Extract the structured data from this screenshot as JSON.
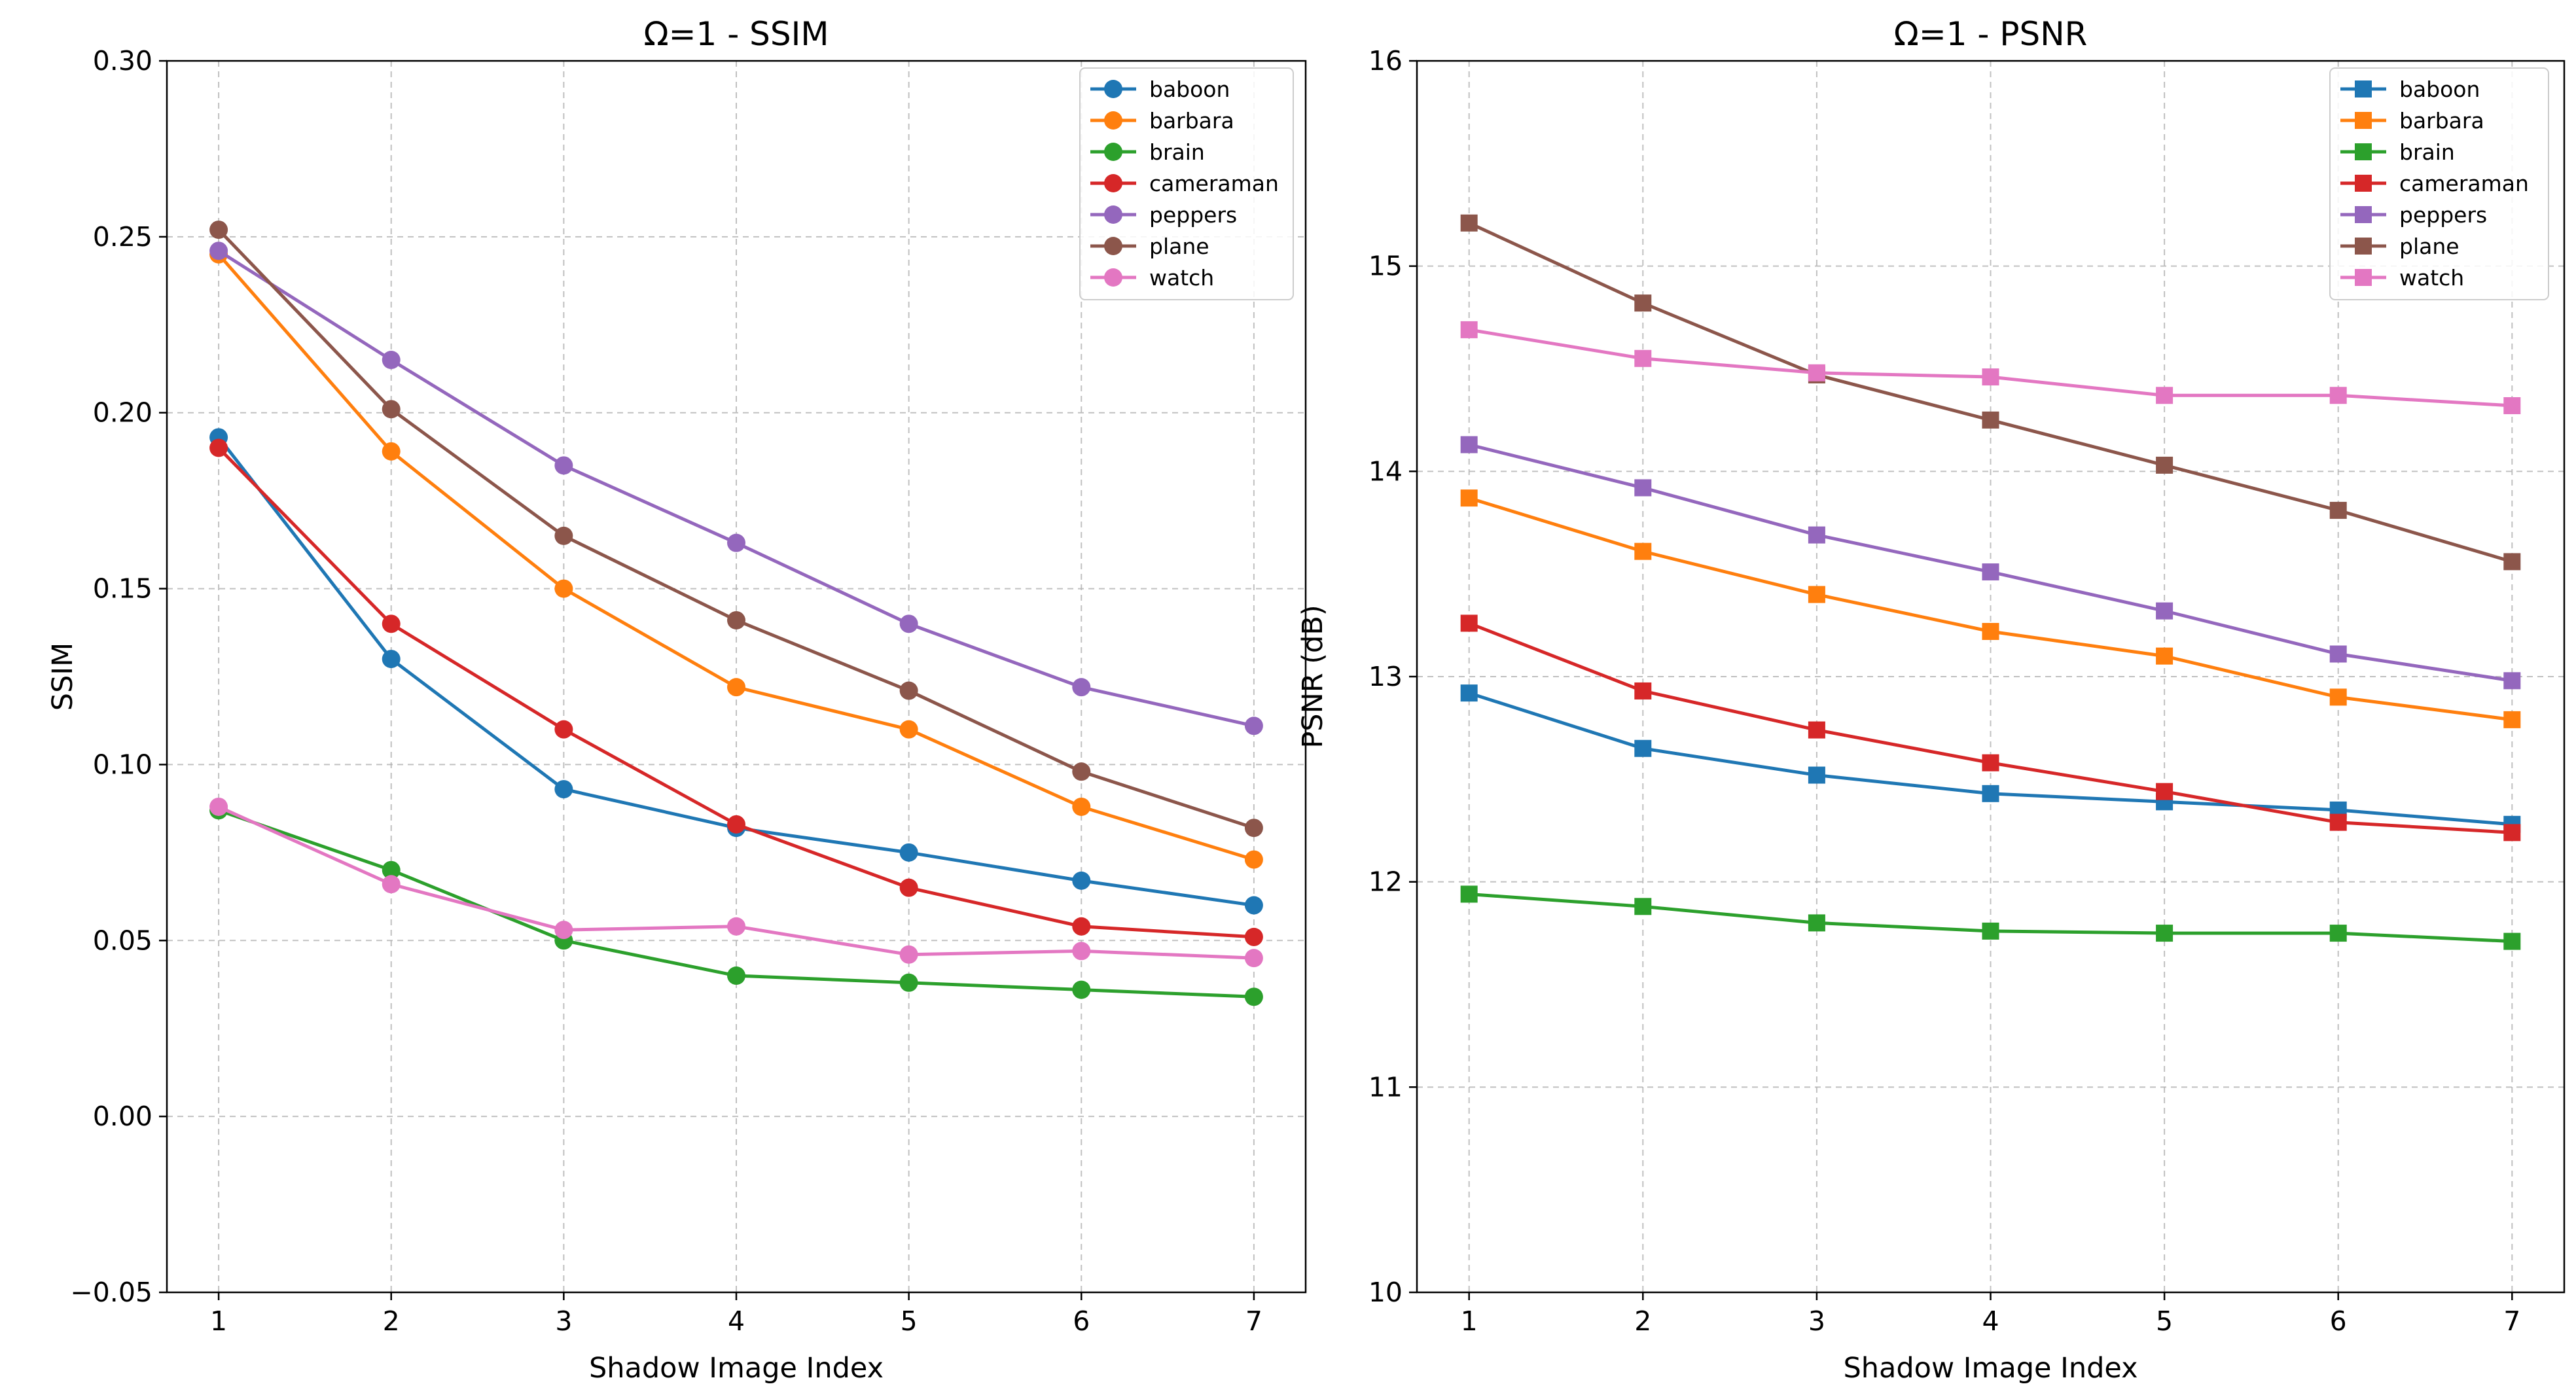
{
  "chart_data": [
    {
      "type": "line",
      "title": "Ω=1 - SSIM",
      "xlabel": "Shadow Image Index",
      "ylabel": "SSIM",
      "x": [
        1,
        2,
        3,
        4,
        5,
        6,
        7
      ],
      "xlim": [
        0.7,
        7.3
      ],
      "ylim": [
        -0.05,
        0.3
      ],
      "yticks": [
        -0.05,
        0.0,
        0.05,
        0.1,
        0.15,
        0.2,
        0.25,
        0.3
      ],
      "ytick_labels": [
        "−0.05",
        "0.00",
        "0.05",
        "0.10",
        "0.15",
        "0.20",
        "0.25",
        "0.30"
      ],
      "xticks": [
        1,
        2,
        3,
        4,
        5,
        6,
        7
      ],
      "xtick_labels": [
        "1",
        "2",
        "3",
        "4",
        "5",
        "6",
        "7"
      ],
      "marker": "circle",
      "grid": true,
      "legend_position": "top-right",
      "series": [
        {
          "name": "baboon",
          "color": "#1f77b4",
          "values": [
            0.193,
            0.13,
            0.093,
            0.082,
            0.075,
            0.067,
            0.06
          ]
        },
        {
          "name": "barbara",
          "color": "#ff7f0e",
          "values": [
            0.245,
            0.189,
            0.15,
            0.122,
            0.11,
            0.088,
            0.073
          ]
        },
        {
          "name": "brain",
          "color": "#2ca02c",
          "values": [
            0.087,
            0.07,
            0.05,
            0.04,
            0.038,
            0.036,
            0.034
          ]
        },
        {
          "name": "cameraman",
          "color": "#d62728",
          "values": [
            0.19,
            0.14,
            0.11,
            0.083,
            0.065,
            0.054,
            0.051
          ]
        },
        {
          "name": "peppers",
          "color": "#9467bd",
          "values": [
            0.246,
            0.215,
            0.185,
            0.163,
            0.14,
            0.122,
            0.111
          ]
        },
        {
          "name": "plane",
          "color": "#8c564b",
          "values": [
            0.252,
            0.201,
            0.165,
            0.141,
            0.121,
            0.098,
            0.082
          ]
        },
        {
          "name": "watch",
          "color": "#e377c2",
          "values": [
            0.088,
            0.066,
            0.053,
            0.054,
            0.046,
            0.047,
            0.045
          ]
        }
      ]
    },
    {
      "type": "line",
      "title": "Ω=1 - PSNR",
      "xlabel": "Shadow Image Index",
      "ylabel": "PSNR (dB)",
      "x": [
        1,
        2,
        3,
        4,
        5,
        6,
        7
      ],
      "xlim": [
        0.7,
        7.3
      ],
      "ylim": [
        10,
        16
      ],
      "yticks": [
        10,
        11,
        12,
        13,
        14,
        15,
        16
      ],
      "ytick_labels": [
        "10",
        "11",
        "12",
        "13",
        "14",
        "15",
        "16"
      ],
      "xticks": [
        1,
        2,
        3,
        4,
        5,
        6,
        7
      ],
      "xtick_labels": [
        "1",
        "2",
        "3",
        "4",
        "5",
        "6",
        "7"
      ],
      "marker": "square",
      "grid": true,
      "legend_position": "top-right",
      "series": [
        {
          "name": "baboon",
          "color": "#1f77b4",
          "values": [
            12.92,
            12.65,
            12.52,
            12.43,
            12.39,
            12.35,
            12.28
          ]
        },
        {
          "name": "barbara",
          "color": "#ff7f0e",
          "values": [
            13.87,
            13.61,
            13.4,
            13.22,
            13.1,
            12.9,
            12.79
          ]
        },
        {
          "name": "brain",
          "color": "#2ca02c",
          "values": [
            11.94,
            11.88,
            11.8,
            11.76,
            11.75,
            11.75,
            11.71
          ]
        },
        {
          "name": "cameraman",
          "color": "#d62728",
          "values": [
            13.26,
            12.93,
            12.74,
            12.58,
            12.44,
            12.29,
            12.24
          ]
        },
        {
          "name": "peppers",
          "color": "#9467bd",
          "values": [
            14.13,
            13.92,
            13.69,
            13.51,
            13.32,
            13.11,
            12.98
          ]
        },
        {
          "name": "plane",
          "color": "#8c564b",
          "values": [
            15.21,
            14.82,
            14.47,
            14.25,
            14.03,
            13.81,
            13.56
          ]
        },
        {
          "name": "watch",
          "color": "#e377c2",
          "values": [
            14.69,
            14.55,
            14.48,
            14.46,
            14.37,
            14.37,
            14.32
          ]
        }
      ]
    }
  ]
}
